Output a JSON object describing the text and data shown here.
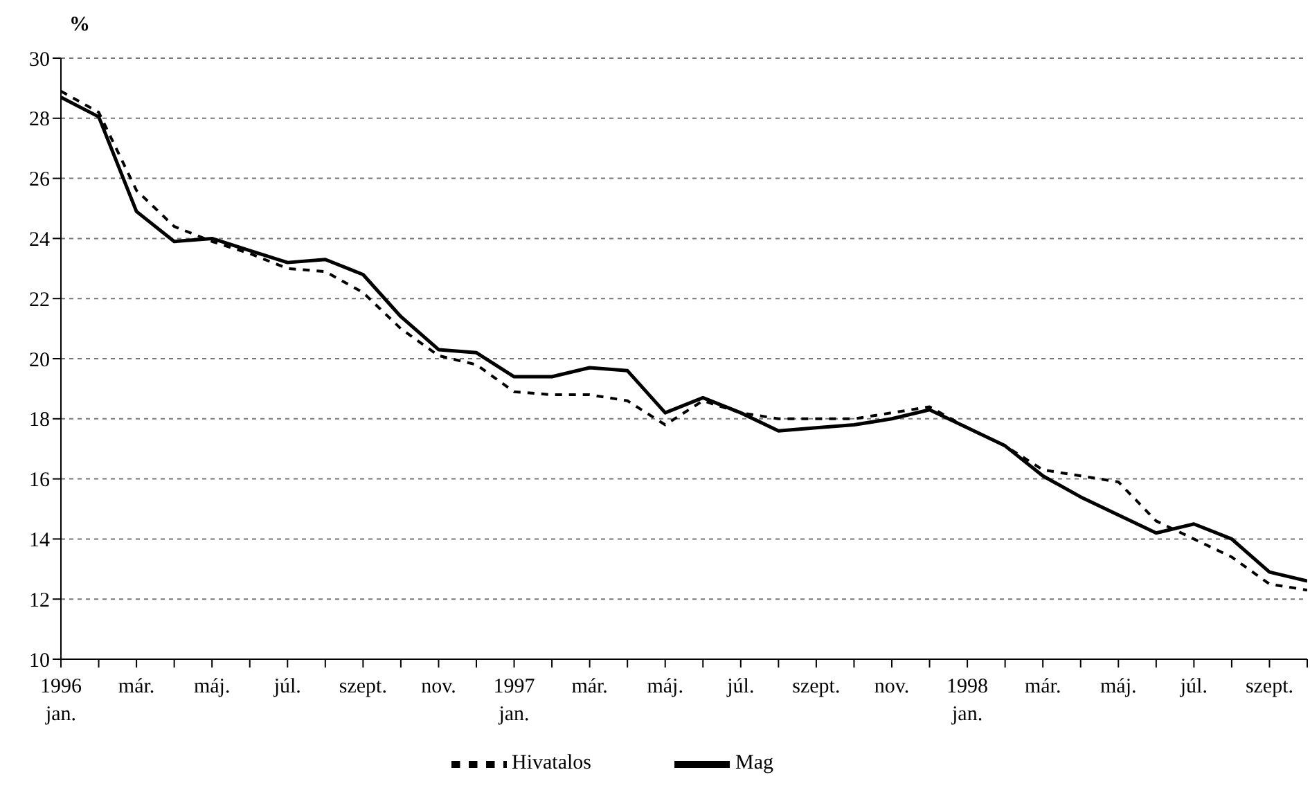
{
  "chart_data": {
    "type": "line",
    "ylabel": "%",
    "categories": [
      "1996\njan.",
      null,
      "már.",
      null,
      "máj.",
      null,
      "júl.",
      null,
      "szept.",
      null,
      "nov.",
      null,
      "1997\njan.",
      null,
      "már.",
      null,
      "máj.",
      null,
      "júl.",
      null,
      "szept.",
      null,
      "nov.",
      null,
      "1998\njan.",
      null,
      "már.",
      null,
      "máj.",
      null,
      "júl.",
      null,
      "szept.",
      null
    ],
    "series": [
      {
        "name": "Mag",
        "color": "#000000",
        "line_style": "solid",
        "values": [
          28.7,
          28.05,
          24.9,
          23.9,
          24.0,
          23.6,
          23.2,
          23.3,
          22.8,
          21.4,
          20.3,
          20.2,
          19.4,
          19.4,
          19.7,
          19.6,
          18.2,
          18.7,
          18.2,
          17.6,
          17.7,
          17.8,
          18.0,
          18.3,
          17.7,
          17.1,
          16.1,
          15.4,
          14.8,
          14.2,
          14.5,
          14.0,
          12.9,
          12.6
        ]
      },
      {
        "name": "Hivatalos",
        "color": "#000000",
        "line_style": "dashed",
        "values": [
          28.9,
          28.2,
          25.6,
          24.4,
          23.9,
          23.5,
          23.0,
          22.9,
          22.2,
          21.0,
          20.1,
          19.8,
          18.9,
          18.8,
          18.8,
          18.6,
          17.8,
          18.6,
          18.2,
          18.0,
          18.0,
          18.0,
          18.2,
          18.4,
          17.7,
          17.1,
          16.3,
          16.1,
          15.9,
          14.6,
          14.0,
          13.4,
          12.5,
          12.3
        ]
      }
    ],
    "ylim": [
      10,
      30
    ],
    "yticks": [
      10,
      12,
      14,
      16,
      18,
      20,
      22,
      24,
      26,
      28,
      30
    ],
    "grid": "y",
    "legend": "bottom"
  }
}
